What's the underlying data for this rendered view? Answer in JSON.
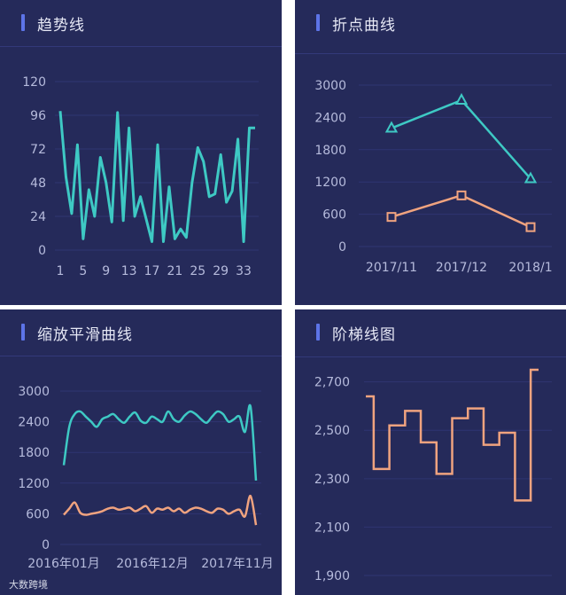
{
  "colors": {
    "panel_bg": "#252a5a",
    "grid": "#2f3572",
    "teal": "#3ec9c4",
    "orange": "#f0a37f",
    "accent": "#5d74e8"
  },
  "watermark": "大数跨境",
  "panels": [
    {
      "title": "趋势线"
    },
    {
      "title": "折点曲线"
    },
    {
      "title": "缩放平滑曲线"
    },
    {
      "title": "阶梯线图"
    }
  ],
  "chart_data": [
    {
      "type": "line",
      "title": "趋势线",
      "x": [
        1,
        2,
        3,
        4,
        5,
        6,
        7,
        8,
        9,
        10,
        11,
        12,
        13,
        14,
        15,
        16,
        17,
        18,
        19,
        20,
        21,
        22,
        23,
        24,
        25,
        26,
        27,
        28,
        29,
        30,
        31,
        32,
        33,
        34,
        35
      ],
      "x_tick_labels": [
        "1",
        "5",
        "9",
        "13",
        "17",
        "21",
        "25",
        "29",
        "33"
      ],
      "series": [
        {
          "color": "#3ec9c4",
          "values": [
            99,
            52,
            26,
            75,
            8,
            43,
            24,
            66,
            48,
            20,
            98,
            21,
            87,
            24,
            38,
            22,
            6,
            75,
            6,
            45,
            8,
            15,
            9,
            48,
            73,
            63,
            38,
            40,
            68,
            34,
            42,
            79,
            6,
            87,
            87
          ]
        }
      ],
      "ylim": [
        0,
        120
      ],
      "y_ticks": [
        0,
        24,
        48,
        72,
        96,
        120
      ]
    },
    {
      "type": "line",
      "title": "折点曲线",
      "categories": [
        "2017/11",
        "2017/12",
        "2018/1"
      ],
      "series": [
        {
          "color": "#3ec9c4",
          "marker": "triangle",
          "values": [
            2200,
            2720,
            1260
          ]
        },
        {
          "color": "#f0a37f",
          "marker": "square",
          "values": [
            550,
            950,
            360
          ]
        }
      ],
      "ylim": [
        0,
        3000
      ],
      "y_ticks": [
        0,
        600,
        1200,
        1800,
        2400,
        3000
      ]
    },
    {
      "type": "line",
      "title": "缩放平滑曲线",
      "x_tick_labels": [
        "2016年01月",
        "2016年12月",
        "2017年11月"
      ],
      "series": [
        {
          "color": "#3ec9c4",
          "values": [
            1550,
            2300,
            2550,
            2600,
            2500,
            2400,
            2300,
            2450,
            2500,
            2550,
            2450,
            2380,
            2500,
            2580,
            2420,
            2380,
            2500,
            2450,
            2400,
            2600,
            2450,
            2400,
            2520,
            2600,
            2550,
            2450,
            2380,
            2500,
            2600,
            2550,
            2400,
            2450,
            2500,
            2200,
            2700,
            1250
          ]
        },
        {
          "color": "#f0a37f",
          "values": [
            580,
            700,
            820,
            620,
            580,
            600,
            620,
            650,
            700,
            720,
            680,
            700,
            720,
            650,
            700,
            750,
            620,
            700,
            680,
            720,
            650,
            700,
            620,
            680,
            720,
            700,
            650,
            620,
            700,
            680,
            600,
            650,
            680,
            550,
            950,
            380
          ]
        }
      ],
      "ylim": [
        0,
        3000
      ],
      "y_ticks": [
        0,
        600,
        1200,
        1800,
        2400,
        3000
      ]
    },
    {
      "type": "line",
      "title": "阶梯线图",
      "step": true,
      "series": [
        {
          "color": "#f0a37f",
          "values": [
            2640,
            2340,
            2520,
            2580,
            2450,
            2320,
            2550,
            2590,
            2440,
            2490,
            2210,
            2750
          ]
        }
      ],
      "ylim": [
        1900,
        2750
      ],
      "y_ticks": [
        1900,
        2100,
        2300,
        2500,
        2700
      ],
      "y_tick_labels": [
        "1,900",
        "2,100",
        "2,300",
        "2,500",
        "2,700"
      ]
    }
  ]
}
